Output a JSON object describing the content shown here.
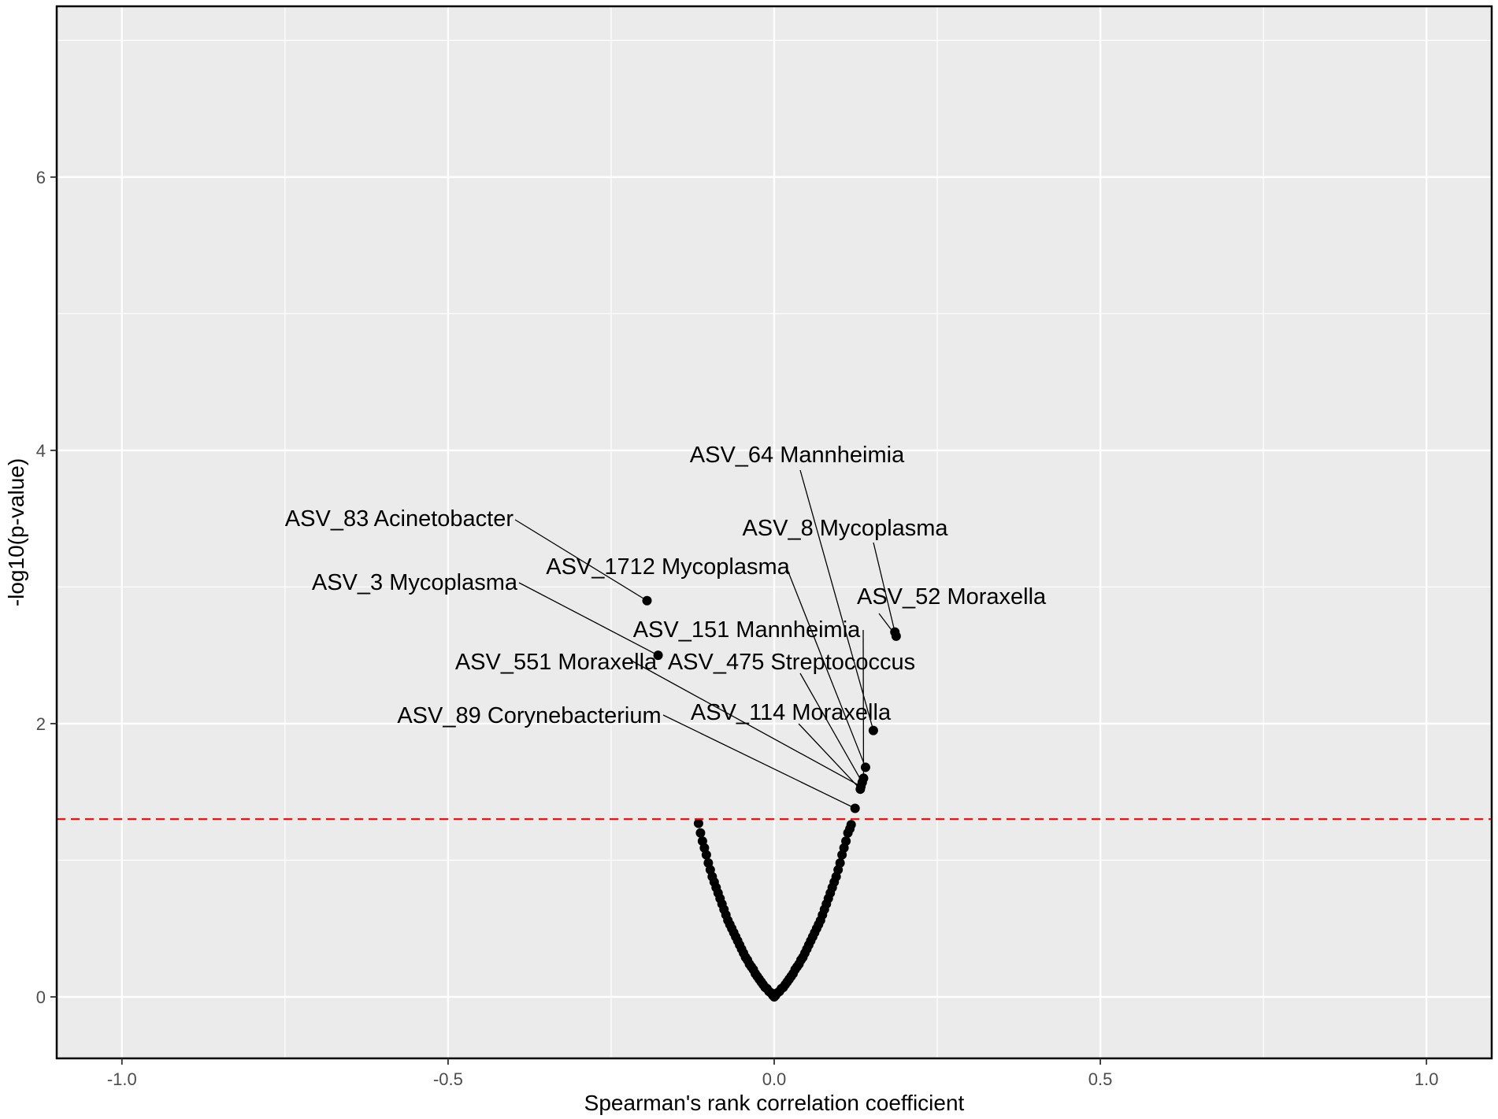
{
  "chart_data": {
    "type": "scatter",
    "title": "",
    "xlabel": "Spearman's rank correlation coefficient",
    "ylabel": "-log10(p-value)",
    "xlim": [
      -1.1,
      1.1
    ],
    "ylim": [
      -0.45,
      7.25
    ],
    "x_ticks": [
      -1.0,
      -0.5,
      0.0,
      0.5,
      1.0
    ],
    "x_tick_labels": [
      "-1.0",
      "-0.5",
      "0.0",
      "0.5",
      "1.0"
    ],
    "y_ticks": [
      0,
      2,
      4,
      6
    ],
    "y_tick_labels": [
      "0",
      "2",
      "4",
      "6"
    ],
    "grid": true,
    "background": "#ebebeb",
    "grid_color": "#ffffff",
    "point_color": "#000000",
    "threshold": {
      "y": 1.301,
      "color": "#ff0000",
      "style": "dashed"
    },
    "labeled_points": [
      {
        "label": "ASV_83 Acinetobacter",
        "x": -0.195,
        "y": 2.9
      },
      {
        "label": "ASV_3 Mycoplasma",
        "x": -0.178,
        "y": 2.5
      },
      {
        "label": "ASV_64 Mannheimia",
        "x": 0.152,
        "y": 1.95
      },
      {
        "label": "ASV_8 Mycoplasma",
        "x": 0.185,
        "y": 2.67
      },
      {
        "label": "ASV_52 Moraxella",
        "x": 0.187,
        "y": 2.64
      },
      {
        "label": "ASV_1712 Mycoplasma",
        "x": 0.14,
        "y": 1.68
      },
      {
        "label": "ASV_151 Mannheimia",
        "x": 0.137,
        "y": 1.6
      },
      {
        "label": "ASV_475 Streptococcus",
        "x": 0.135,
        "y": 1.57
      },
      {
        "label": "ASV_551 Moraxella",
        "x": 0.133,
        "y": 1.54
      },
      {
        "label": "ASV_114 Moraxella",
        "x": 0.132,
        "y": 1.52
      },
      {
        "label": "ASV_89 Corynebacterium",
        "x": 0.124,
        "y": 1.38
      }
    ],
    "points": [
      {
        "x": -0.116,
        "y": 1.27
      },
      {
        "x": -0.113,
        "y": 1.2
      },
      {
        "x": -0.11,
        "y": 1.14
      },
      {
        "x": -0.107,
        "y": 1.09
      },
      {
        "x": -0.104,
        "y": 1.04
      },
      {
        "x": -0.101,
        "y": 0.98
      },
      {
        "x": -0.098,
        "y": 0.93
      },
      {
        "x": -0.095,
        "y": 0.88
      },
      {
        "x": -0.092,
        "y": 0.84
      },
      {
        "x": -0.089,
        "y": 0.8
      },
      {
        "x": -0.086,
        "y": 0.76
      },
      {
        "x": -0.083,
        "y": 0.72
      },
      {
        "x": -0.08,
        "y": 0.68
      },
      {
        "x": -0.077,
        "y": 0.64
      },
      {
        "x": -0.074,
        "y": 0.6
      },
      {
        "x": -0.071,
        "y": 0.56
      },
      {
        "x": -0.068,
        "y": 0.53
      },
      {
        "x": -0.065,
        "y": 0.5
      },
      {
        "x": -0.062,
        "y": 0.47
      },
      {
        "x": -0.059,
        "y": 0.44
      },
      {
        "x": -0.056,
        "y": 0.41
      },
      {
        "x": -0.053,
        "y": 0.38
      },
      {
        "x": -0.05,
        "y": 0.35
      },
      {
        "x": -0.047,
        "y": 0.32
      },
      {
        "x": -0.044,
        "y": 0.29
      },
      {
        "x": -0.041,
        "y": 0.27
      },
      {
        "x": -0.038,
        "y": 0.24
      },
      {
        "x": -0.035,
        "y": 0.22
      },
      {
        "x": -0.032,
        "y": 0.2
      },
      {
        "x": -0.029,
        "y": 0.17
      },
      {
        "x": -0.026,
        "y": 0.15
      },
      {
        "x": -0.023,
        "y": 0.13
      },
      {
        "x": -0.02,
        "y": 0.11
      },
      {
        "x": -0.017,
        "y": 0.09
      },
      {
        "x": -0.014,
        "y": 0.07
      },
      {
        "x": -0.011,
        "y": 0.06
      },
      {
        "x": -0.008,
        "y": 0.04
      },
      {
        "x": -0.005,
        "y": 0.03
      },
      {
        "x": -0.002,
        "y": 0.01
      },
      {
        "x": 0.0,
        "y": 0.0
      },
      {
        "x": 0.002,
        "y": 0.01
      },
      {
        "x": 0.005,
        "y": 0.03
      },
      {
        "x": 0.008,
        "y": 0.04
      },
      {
        "x": 0.011,
        "y": 0.06
      },
      {
        "x": 0.014,
        "y": 0.07
      },
      {
        "x": 0.017,
        "y": 0.09
      },
      {
        "x": 0.02,
        "y": 0.11
      },
      {
        "x": 0.023,
        "y": 0.13
      },
      {
        "x": 0.026,
        "y": 0.15
      },
      {
        "x": 0.029,
        "y": 0.17
      },
      {
        "x": 0.032,
        "y": 0.2
      },
      {
        "x": 0.035,
        "y": 0.22
      },
      {
        "x": 0.038,
        "y": 0.24
      },
      {
        "x": 0.041,
        "y": 0.27
      },
      {
        "x": 0.044,
        "y": 0.29
      },
      {
        "x": 0.047,
        "y": 0.32
      },
      {
        "x": 0.05,
        "y": 0.35
      },
      {
        "x": 0.053,
        "y": 0.38
      },
      {
        "x": 0.056,
        "y": 0.41
      },
      {
        "x": 0.059,
        "y": 0.44
      },
      {
        "x": 0.062,
        "y": 0.47
      },
      {
        "x": 0.065,
        "y": 0.5
      },
      {
        "x": 0.068,
        "y": 0.53
      },
      {
        "x": 0.071,
        "y": 0.56
      },
      {
        "x": 0.074,
        "y": 0.6
      },
      {
        "x": 0.077,
        "y": 0.64
      },
      {
        "x": 0.08,
        "y": 0.68
      },
      {
        "x": 0.083,
        "y": 0.72
      },
      {
        "x": 0.086,
        "y": 0.76
      },
      {
        "x": 0.089,
        "y": 0.8
      },
      {
        "x": 0.092,
        "y": 0.84
      },
      {
        "x": 0.095,
        "y": 0.88
      },
      {
        "x": 0.098,
        "y": 0.93
      },
      {
        "x": 0.101,
        "y": 0.98
      },
      {
        "x": 0.104,
        "y": 1.04
      },
      {
        "x": 0.107,
        "y": 1.09
      },
      {
        "x": 0.11,
        "y": 1.14
      },
      {
        "x": 0.113,
        "y": 1.2
      },
      {
        "x": 0.116,
        "y": 1.23
      },
      {
        "x": 0.118,
        "y": 1.26
      }
    ]
  }
}
